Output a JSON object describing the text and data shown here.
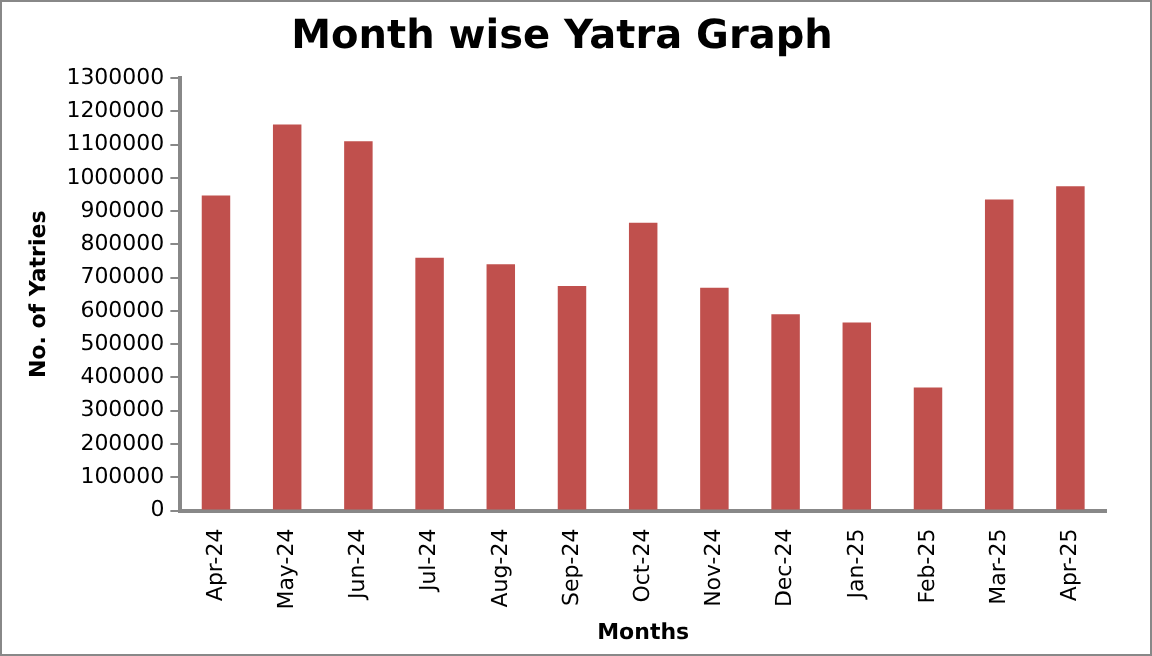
{
  "chart_data": {
    "type": "bar",
    "title": "Month wise Yatra Graph",
    "xlabel": "Months",
    "ylabel": "No. of Yatries",
    "categories": [
      "Apr-24",
      "May-24",
      "Jun-24",
      "Jul-24",
      "Aug-24",
      "Sep-24",
      "Oct-24",
      "Nov-24",
      "Dec-24",
      "Jan-25",
      "Feb-25",
      "Mar-25",
      "Apr-25"
    ],
    "values": [
      947000,
      1160000,
      1110000,
      760000,
      740000,
      675000,
      865000,
      670000,
      590000,
      565000,
      370000,
      935000,
      975000
    ],
    "color": "#c0504d",
    "ylim": [
      0,
      1300000
    ],
    "yticks": [
      0,
      100000,
      200000,
      300000,
      400000,
      500000,
      600000,
      700000,
      800000,
      900000,
      1000000,
      1100000,
      1200000,
      1300000
    ],
    "grid": false,
    "legend": false
  }
}
